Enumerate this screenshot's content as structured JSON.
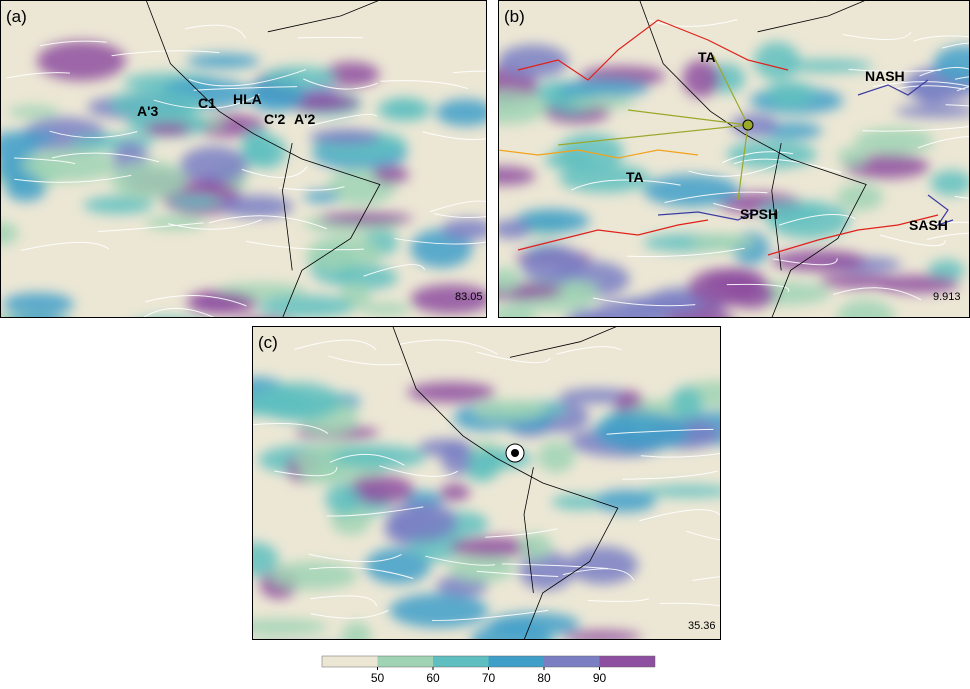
{
  "panels": [
    {
      "label": "(a)",
      "corner_value": "83.05",
      "annotations": [
        "A'3",
        "C1",
        "HLA",
        "C'2",
        "A'2"
      ]
    },
    {
      "label": "(b)",
      "corner_value": "9.913",
      "annotations": [
        "TA",
        "NASH",
        "TA",
        "SPSH",
        "SASH"
      ]
    },
    {
      "label": "(c)",
      "corner_value": "35.36",
      "annotations": []
    }
  ],
  "colorbar": {
    "range": [
      40,
      100
    ],
    "ticks": [
      50,
      60,
      70,
      80,
      90
    ],
    "colors": [
      "#ece7d5",
      "#9fd3b4",
      "#5fbfc0",
      "#3f9fc9",
      "#7a7fc4",
      "#8e4fa0"
    ]
  }
}
